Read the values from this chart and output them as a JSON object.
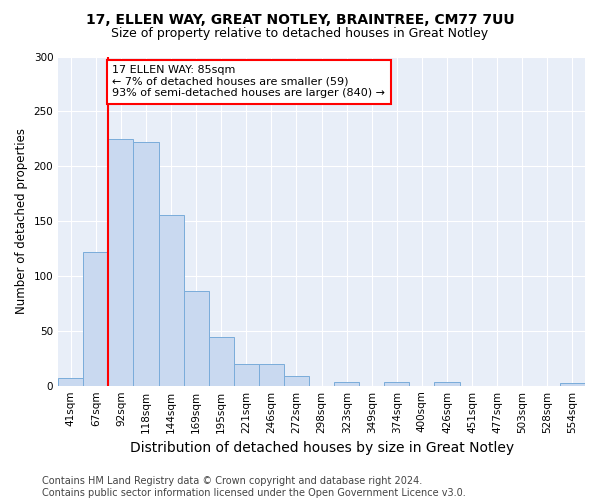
{
  "title1": "17, ELLEN WAY, GREAT NOTLEY, BRAINTREE, CM77 7UU",
  "title2": "Size of property relative to detached houses in Great Notley",
  "xlabel": "Distribution of detached houses by size in Great Notley",
  "ylabel": "Number of detached properties",
  "bar_color": "#c9d9f0",
  "bar_edge_color": "#7aacda",
  "background_color": "#e8eef8",
  "bin_labels": [
    "41sqm",
    "67sqm",
    "92sqm",
    "118sqm",
    "144sqm",
    "169sqm",
    "195sqm",
    "221sqm",
    "246sqm",
    "272sqm",
    "298sqm",
    "323sqm",
    "349sqm",
    "374sqm",
    "400sqm",
    "426sqm",
    "451sqm",
    "477sqm",
    "503sqm",
    "528sqm",
    "554sqm"
  ],
  "bar_heights": [
    7,
    122,
    225,
    222,
    156,
    86,
    44,
    20,
    20,
    9,
    0,
    3,
    0,
    3,
    0,
    3,
    0,
    0,
    0,
    0,
    2
  ],
  "ylim": [
    0,
    300
  ],
  "yticks": [
    0,
    50,
    100,
    150,
    200,
    250,
    300
  ],
  "vline_x": 1.5,
  "annotation_text": "17 ELLEN WAY: 85sqm\n← 7% of detached houses are smaller (59)\n93% of semi-detached houses are larger (840) →",
  "annotation_box_color": "white",
  "annotation_box_edge_color": "red",
  "vline_color": "red",
  "footnote": "Contains HM Land Registry data © Crown copyright and database right 2024.\nContains public sector information licensed under the Open Government Licence v3.0.",
  "grid_color": "#ffffff",
  "title1_fontsize": 10,
  "title2_fontsize": 9,
  "xlabel_fontsize": 10,
  "ylabel_fontsize": 8.5,
  "tick_fontsize": 7.5,
  "footnote_fontsize": 7
}
